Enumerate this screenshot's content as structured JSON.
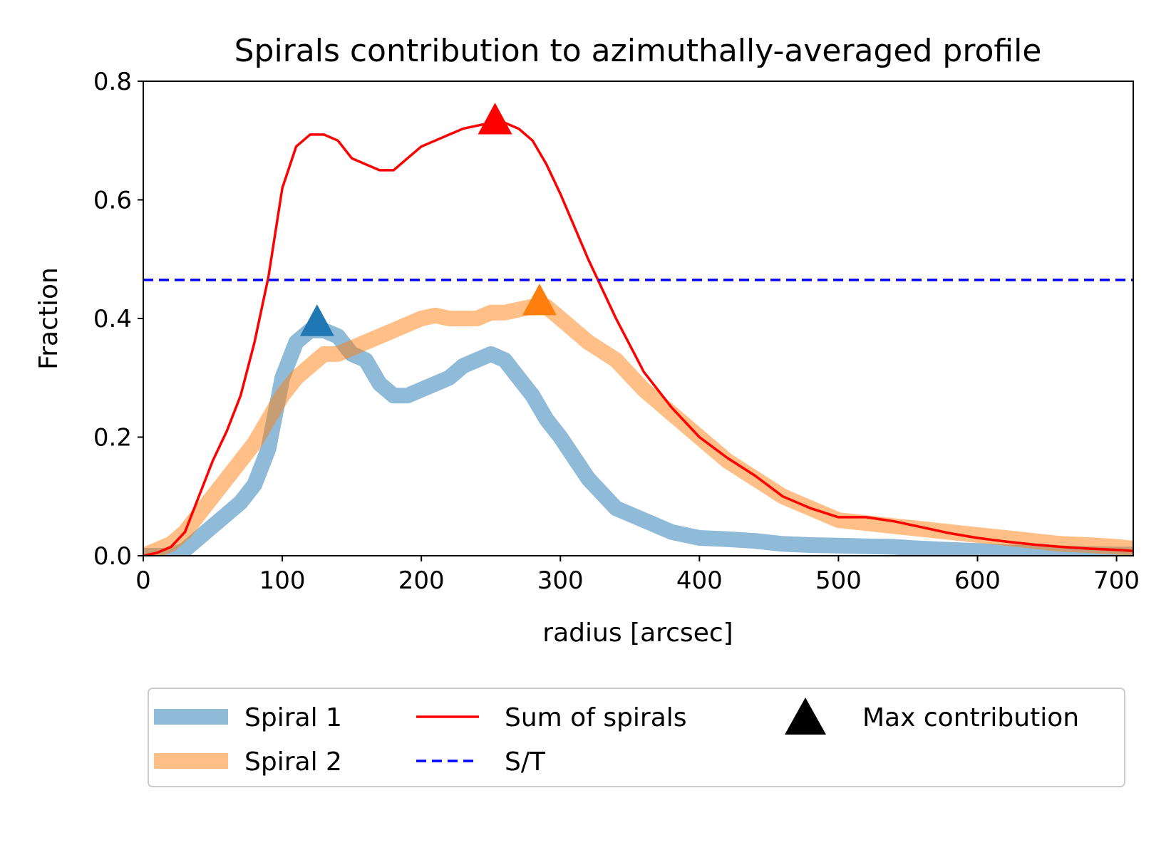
{
  "chart_data": {
    "type": "line",
    "title": "Spirals contribution to azimuthally-averaged profile",
    "xlabel": "radius [arcsec]",
    "ylabel": "Fraction",
    "xlim": [
      0,
      712
    ],
    "ylim": [
      0,
      0.8
    ],
    "xticks": [
      "0",
      "100",
      "200",
      "300",
      "400",
      "500",
      "600",
      "700"
    ],
    "yticks": [
      "0.0",
      "0.2",
      "0.4",
      "0.6",
      "0.8"
    ],
    "grid": false,
    "legend_position": "bottom",
    "colors": {
      "spiral1": "#1f77b4",
      "spiral2": "#ff7f0e",
      "sum": "#ff0000",
      "st": "#0000ff",
      "max_marker_legend": "#000000"
    },
    "series": [
      {
        "name": "Spiral 1",
        "x": [
          0,
          10,
          20,
          30,
          40,
          50,
          60,
          70,
          80,
          90,
          100,
          110,
          120,
          130,
          140,
          150,
          160,
          170,
          180,
          190,
          200,
          210,
          220,
          230,
          240,
          250,
          260,
          270,
          280,
          290,
          300,
          320,
          340,
          360,
          380,
          400,
          420,
          440,
          460,
          480,
          500,
          520,
          540,
          560,
          580,
          600,
          620,
          640,
          660,
          680,
          700,
          712
        ],
        "values": [
          0.0,
          0.0,
          0.0,
          0.01,
          0.03,
          0.05,
          0.07,
          0.09,
          0.12,
          0.18,
          0.3,
          0.36,
          0.38,
          0.38,
          0.37,
          0.34,
          0.33,
          0.29,
          0.27,
          0.27,
          0.28,
          0.29,
          0.3,
          0.32,
          0.33,
          0.34,
          0.33,
          0.3,
          0.27,
          0.23,
          0.2,
          0.13,
          0.08,
          0.06,
          0.04,
          0.03,
          0.028,
          0.025,
          0.02,
          0.018,
          0.017,
          0.016,
          0.015,
          0.012,
          0.01,
          0.008,
          0.006,
          0.005,
          0.004,
          0.003,
          0.002,
          0.002
        ]
      },
      {
        "name": "Spiral 2",
        "x": [
          0,
          10,
          20,
          30,
          40,
          50,
          60,
          70,
          80,
          90,
          100,
          110,
          120,
          130,
          140,
          150,
          160,
          170,
          180,
          190,
          200,
          210,
          220,
          230,
          240,
          250,
          260,
          270,
          280,
          290,
          300,
          320,
          340,
          360,
          380,
          400,
          420,
          440,
          460,
          480,
          500,
          520,
          540,
          560,
          580,
          600,
          620,
          640,
          660,
          680,
          700,
          712
        ],
        "values": [
          0.0,
          0.01,
          0.02,
          0.04,
          0.07,
          0.1,
          0.13,
          0.16,
          0.19,
          0.23,
          0.27,
          0.3,
          0.32,
          0.34,
          0.34,
          0.35,
          0.36,
          0.37,
          0.38,
          0.39,
          0.4,
          0.405,
          0.4,
          0.4,
          0.4,
          0.41,
          0.41,
          0.415,
          0.42,
          0.42,
          0.4,
          0.36,
          0.33,
          0.28,
          0.24,
          0.2,
          0.16,
          0.13,
          0.1,
          0.08,
          0.06,
          0.055,
          0.05,
          0.045,
          0.04,
          0.035,
          0.03,
          0.025,
          0.02,
          0.018,
          0.015,
          0.012
        ]
      },
      {
        "name": "Sum of spirals",
        "x": [
          0,
          10,
          20,
          30,
          40,
          50,
          60,
          70,
          80,
          90,
          100,
          110,
          120,
          130,
          140,
          150,
          160,
          170,
          180,
          190,
          200,
          210,
          220,
          230,
          240,
          250,
          260,
          270,
          280,
          290,
          300,
          320,
          340,
          360,
          380,
          400,
          420,
          440,
          460,
          480,
          500,
          520,
          540,
          560,
          580,
          600,
          620,
          640,
          660,
          680,
          700,
          712
        ],
        "values": [
          0.0,
          0.005,
          0.015,
          0.04,
          0.1,
          0.16,
          0.21,
          0.27,
          0.36,
          0.47,
          0.62,
          0.69,
          0.71,
          0.71,
          0.7,
          0.67,
          0.66,
          0.65,
          0.65,
          0.67,
          0.69,
          0.7,
          0.71,
          0.72,
          0.725,
          0.73,
          0.73,
          0.72,
          0.7,
          0.66,
          0.61,
          0.5,
          0.4,
          0.31,
          0.25,
          0.2,
          0.165,
          0.135,
          0.1,
          0.08,
          0.065,
          0.065,
          0.058,
          0.048,
          0.038,
          0.03,
          0.024,
          0.019,
          0.015,
          0.012,
          0.01,
          0.008
        ]
      }
    ],
    "reference_lines": [
      {
        "name": "S/T",
        "y": 0.465
      }
    ],
    "markers": [
      {
        "name": "Max contribution",
        "series": "Spiral 1",
        "x": 125,
        "y": 0.395
      },
      {
        "name": "Max contribution",
        "series": "Spiral 2",
        "x": 285,
        "y": 0.43
      },
      {
        "name": "Max contribution",
        "series": "Sum of spirals",
        "x": 253,
        "y": 0.735
      }
    ],
    "legend": [
      {
        "label": "Spiral 1",
        "kind": "thick-line",
        "color_key": "spiral1"
      },
      {
        "label": "Spiral 2",
        "kind": "thick-line",
        "color_key": "spiral2"
      },
      {
        "label": "Sum of spirals",
        "kind": "line",
        "color_key": "sum"
      },
      {
        "label": "S/T",
        "kind": "dashed",
        "color_key": "st"
      },
      {
        "label": "Max contribution",
        "kind": "triangle",
        "color_key": "max_marker_legend"
      }
    ]
  }
}
